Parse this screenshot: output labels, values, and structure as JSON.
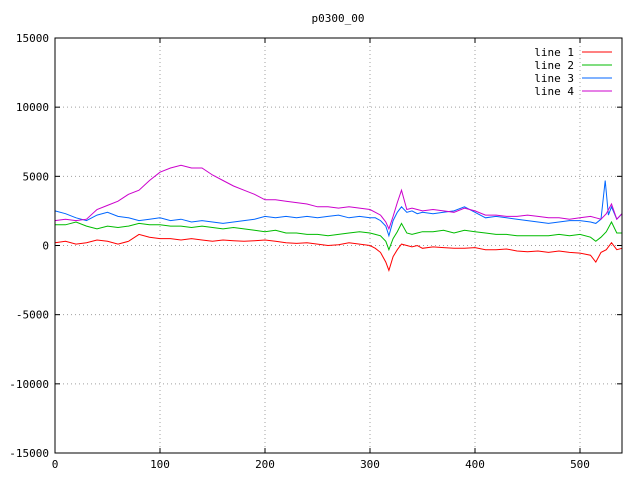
{
  "chart_data": {
    "type": "line",
    "title": "p0300_00",
    "xlabel": "",
    "ylabel": "",
    "xlim": [
      0,
      540
    ],
    "ylim": [
      -15000,
      15000
    ],
    "x_ticks": [
      0,
      100,
      200,
      300,
      400,
      500
    ],
    "y_ticks": [
      -15000,
      -10000,
      -5000,
      0,
      5000,
      10000,
      15000
    ],
    "grid": true,
    "legend_position": "top-right",
    "series": [
      {
        "name": "line 1",
        "color": "#ff0000",
        "x": [
          0,
          10,
          20,
          30,
          40,
          50,
          60,
          70,
          80,
          90,
          100,
          110,
          120,
          130,
          140,
          150,
          160,
          170,
          180,
          190,
          200,
          210,
          220,
          230,
          240,
          250,
          260,
          270,
          280,
          290,
          300,
          305,
          310,
          315,
          318,
          322,
          326,
          330,
          335,
          340,
          345,
          350,
          360,
          370,
          380,
          390,
          400,
          410,
          420,
          430,
          440,
          450,
          460,
          470,
          480,
          490,
          500,
          510,
          515,
          520,
          525,
          530,
          535,
          540
        ],
        "y": [
          200,
          300,
          100,
          200,
          400,
          300,
          100,
          300,
          800,
          600,
          500,
          500,
          400,
          500,
          400,
          300,
          400,
          350,
          300,
          350,
          400,
          300,
          200,
          150,
          200,
          100,
          0,
          50,
          200,
          100,
          0,
          -200,
          -500,
          -1200,
          -1800,
          -800,
          -300,
          100,
          0,
          -100,
          0,
          -200,
          -100,
          -150,
          -200,
          -200,
          -150,
          -300,
          -300,
          -250,
          -400,
          -450,
          -400,
          -500,
          -400,
          -500,
          -550,
          -700,
          -1200,
          -500,
          -300,
          200,
          -300,
          -200
        ]
      },
      {
        "name": "line 2",
        "color": "#00bb00",
        "x": [
          0,
          10,
          20,
          30,
          40,
          50,
          60,
          70,
          80,
          90,
          100,
          110,
          120,
          130,
          140,
          150,
          160,
          170,
          180,
          190,
          200,
          210,
          220,
          230,
          240,
          250,
          260,
          270,
          280,
          290,
          300,
          305,
          310,
          315,
          318,
          322,
          326,
          330,
          335,
          340,
          345,
          350,
          360,
          370,
          380,
          390,
          400,
          410,
          420,
          430,
          440,
          450,
          460,
          470,
          480,
          490,
          500,
          510,
          515,
          520,
          525,
          530,
          535,
          540
        ],
        "y": [
          1500,
          1500,
          1700,
          1400,
          1200,
          1400,
          1300,
          1400,
          1600,
          1500,
          1500,
          1400,
          1400,
          1300,
          1400,
          1300,
          1200,
          1300,
          1200,
          1100,
          1000,
          1100,
          900,
          900,
          800,
          800,
          700,
          800,
          900,
          1000,
          900,
          800,
          700,
          300,
          -300,
          500,
          1000,
          1600,
          900,
          800,
          900,
          1000,
          1000,
          1100,
          900,
          1100,
          1000,
          900,
          800,
          800,
          700,
          700,
          700,
          700,
          800,
          700,
          800,
          600,
          300,
          600,
          1000,
          1700,
          900,
          900
        ]
      },
      {
        "name": "line 3",
        "color": "#0066ff",
        "x": [
          0,
          10,
          20,
          30,
          40,
          50,
          60,
          70,
          80,
          90,
          100,
          110,
          120,
          130,
          140,
          150,
          160,
          170,
          180,
          190,
          200,
          210,
          220,
          230,
          240,
          250,
          260,
          270,
          280,
          290,
          300,
          305,
          310,
          315,
          318,
          322,
          326,
          330,
          335,
          340,
          345,
          350,
          360,
          370,
          380,
          390,
          400,
          410,
          420,
          430,
          440,
          450,
          460,
          470,
          480,
          490,
          500,
          510,
          515,
          520,
          524,
          527,
          530,
          535,
          540
        ],
        "y": [
          2500,
          2300,
          2000,
          1800,
          2200,
          2400,
          2100,
          2000,
          1800,
          1900,
          2000,
          1800,
          1900,
          1700,
          1800,
          1700,
          1600,
          1700,
          1800,
          1900,
          2100,
          2000,
          2100,
          2000,
          2100,
          2000,
          2100,
          2200,
          2000,
          2100,
          2000,
          2000,
          1800,
          1400,
          700,
          1800,
          2400,
          2800,
          2400,
          2500,
          2300,
          2400,
          2300,
          2400,
          2500,
          2800,
          2400,
          2000,
          2100,
          2000,
          1900,
          1800,
          1700,
          1600,
          1700,
          1800,
          1800,
          1700,
          1600,
          1900,
          4700,
          2200,
          2800,
          1900,
          2300
        ]
      },
      {
        "name": "line 4",
        "color": "#cc00cc",
        "x": [
          0,
          10,
          20,
          30,
          40,
          50,
          60,
          70,
          80,
          90,
          100,
          110,
          120,
          130,
          140,
          150,
          160,
          170,
          180,
          190,
          200,
          210,
          220,
          230,
          240,
          250,
          260,
          270,
          280,
          290,
          300,
          305,
          310,
          315,
          318,
          322,
          326,
          330,
          335,
          340,
          345,
          350,
          360,
          370,
          380,
          390,
          400,
          410,
          420,
          430,
          440,
          450,
          460,
          470,
          480,
          490,
          500,
          510,
          515,
          520,
          525,
          530,
          535,
          540
        ],
        "y": [
          1800,
          1900,
          1800,
          1900,
          2600,
          2900,
          3200,
          3700,
          4000,
          4700,
          5300,
          5600,
          5800,
          5600,
          5600,
          5100,
          4700,
          4300,
          4000,
          3700,
          3300,
          3300,
          3200,
          3100,
          3000,
          2800,
          2800,
          2700,
          2800,
          2700,
          2600,
          2400,
          2200,
          1700,
          1200,
          2100,
          3100,
          4000,
          2600,
          2700,
          2600,
          2500,
          2600,
          2500,
          2400,
          2700,
          2500,
          2200,
          2200,
          2100,
          2100,
          2200,
          2100,
          2000,
          2000,
          1900,
          2000,
          2100,
          2000,
          1900,
          2300,
          3000,
          1900,
          2300
        ]
      }
    ]
  }
}
